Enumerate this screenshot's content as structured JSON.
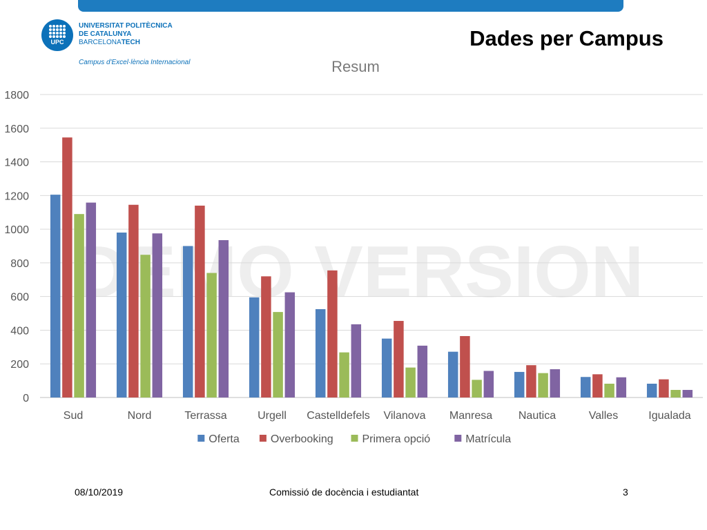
{
  "header": {
    "logo_abbr": "UPC",
    "logo_line1": "UNIVERSITAT POLITÈCNICA",
    "logo_line2": "DE CATALUNYA",
    "logo_line3_a": "BARCELONA",
    "logo_line3_b": "TECH",
    "logo_tagline": "Campus d'Excel·lència Internacional",
    "slide_title": "Dades per Campus"
  },
  "watermark": "DEMO VERSION",
  "footer": {
    "date": "08/10/2019",
    "center_text": "Comissió de docència i estudiantat",
    "page_number": "3"
  },
  "chart_data": {
    "type": "bar",
    "title": "Resum",
    "categories": [
      "Sud",
      "Nord",
      "Terrassa",
      "Urgell",
      "Castelldefels",
      "Vilanova",
      "Manresa",
      "Nautica",
      "Valles",
      "Igualada"
    ],
    "series": [
      {
        "name": "Oferta",
        "color": "#4f81bd",
        "values": [
          1205,
          980,
          900,
          595,
          525,
          350,
          272,
          152,
          122,
          82
        ]
      },
      {
        "name": "Overbooking",
        "color": "#c0504d",
        "values": [
          1545,
          1145,
          1140,
          720,
          755,
          455,
          365,
          192,
          138,
          108
        ]
      },
      {
        "name": "Primera opció",
        "color": "#9bbb59",
        "values": [
          1090,
          848,
          740,
          508,
          268,
          178,
          105,
          145,
          82,
          45
        ]
      },
      {
        "name": "Matrícula",
        "color": "#8064a2",
        "values": [
          1158,
          975,
          935,
          625,
          435,
          308,
          158,
          168,
          120,
          45
        ]
      }
    ],
    "yticks": [
      0,
      200,
      400,
      600,
      800,
      1000,
      1200,
      1400,
      1600,
      1800
    ],
    "ylim": [
      0,
      1800
    ],
    "grid": true,
    "legend_position": "bottom"
  }
}
